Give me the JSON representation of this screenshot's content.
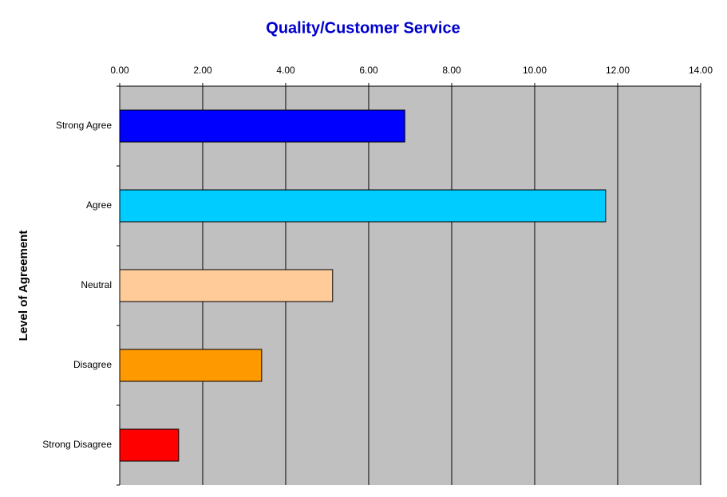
{
  "chart_data": {
    "type": "hbar",
    "title": "Quality/Customer Service",
    "y_label": "Level of Agreement",
    "categories": [
      "Strong Agree",
      "Agree",
      "Neutral",
      "Disagree",
      "Strong Disagree"
    ],
    "values": [
      6.87,
      11.71,
      5.13,
      3.42,
      1.42
    ],
    "colors": [
      "#0000ff",
      "#00ccff",
      "#ffcc99",
      "#ff9900",
      "#ff0000"
    ],
    "xlim": [
      0,
      14
    ],
    "xticks": [
      {
        "value": 0,
        "label": "0.00"
      },
      {
        "value": 2,
        "label": "2.00"
      },
      {
        "value": 4,
        "label": "4.00"
      },
      {
        "value": 6,
        "label": "6.00"
      },
      {
        "value": 8,
        "label": "8.00"
      },
      {
        "value": 10,
        "label": "10.00"
      },
      {
        "value": 12,
        "label": "12.00"
      },
      {
        "value": 14,
        "label": "14.00"
      }
    ],
    "grid": true
  }
}
